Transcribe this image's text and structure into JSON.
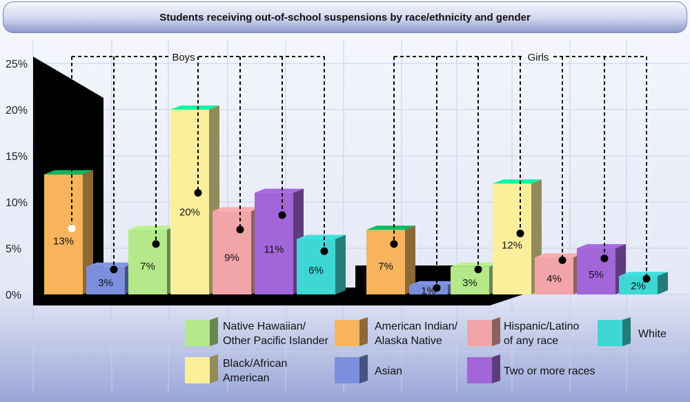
{
  "chart_data": {
    "type": "bar",
    "title": "Students receiving out-of-school suspensions by race/ethnicity and gender",
    "xlabel": "",
    "ylabel": "",
    "ylim": [
      0,
      25
    ],
    "yticks": [
      "0%",
      "5%",
      "10%",
      "15%",
      "20%",
      "25%"
    ],
    "grid": true,
    "groups": [
      {
        "name": "Boys",
        "bars": [
          {
            "category": "American Indian/ Alaska Native",
            "value": 13,
            "label": "13%"
          },
          {
            "category": "Asian",
            "value": 3,
            "label": "3%"
          },
          {
            "category": "Native Hawaiian/ Other Pacific Islander",
            "value": 7,
            "label": "7%"
          },
          {
            "category": "Black/African American",
            "value": 20,
            "label": "20%"
          },
          {
            "category": "Hispanic/Latino of any race",
            "value": 9,
            "label": "9%"
          },
          {
            "category": "Two or more races",
            "value": 11,
            "label": "11%"
          },
          {
            "category": "White",
            "value": 6,
            "label": "6%"
          }
        ]
      },
      {
        "name": "Girls",
        "bars": [
          {
            "category": "American Indian/ Alaska Native",
            "value": 7,
            "label": "7%"
          },
          {
            "category": "Asian",
            "value": 1,
            "label": "1%"
          },
          {
            "category": "Native Hawaiian/ Other Pacific Islander",
            "value": 3,
            "label": "3%"
          },
          {
            "category": "Black/African American",
            "value": 12,
            "label": "12%"
          },
          {
            "category": "Hispanic/Latino of any race",
            "value": 4,
            "label": "4%"
          },
          {
            "category": "Two or more races",
            "value": 5,
            "label": "5%"
          },
          {
            "category": "White",
            "value": 2,
            "label": "2%"
          }
        ]
      }
    ],
    "legend": {
      "placement": "bottom",
      "items": [
        {
          "category": "Native Hawaiian/ Other Pacific Islander",
          "lines": [
            "Native Hawaiian/",
            "Other Pacific Islander"
          ]
        },
        {
          "category": "American Indian/ Alaska Native",
          "lines": [
            "American Indian/",
            "Alaska Native"
          ]
        },
        {
          "category": "Hispanic/Latino of any race",
          "lines": [
            "Hispanic/Latino",
            "of any race"
          ]
        },
        {
          "category": "White",
          "lines": [
            "White"
          ]
        },
        {
          "category": "Black/African American",
          "lines": [
            "Black/African",
            "American"
          ]
        },
        {
          "category": "Asian",
          "lines": [
            "Asian"
          ]
        },
        {
          "category": "Two or more races",
          "lines": [
            "Two or more races"
          ]
        }
      ]
    },
    "colors": {
      "American Indian/ Alaska Native": "#f7b45c",
      "Asian": "#7b8fdc",
      "Native Hawaiian/ Other Pacific Islander": "#b4e88a",
      "Black/African American": "#fcef9c",
      "Hispanic/Latino of any race": "#f2a5a8",
      "Two or more races": "#a266d8",
      "White": "#3dd7d4"
    }
  }
}
